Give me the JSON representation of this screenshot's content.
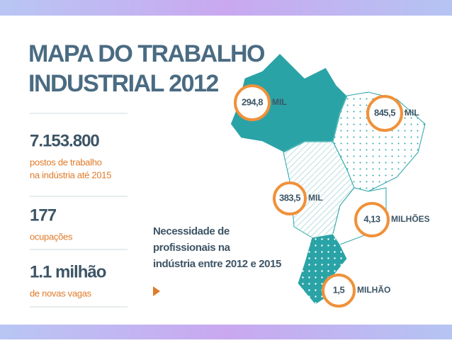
{
  "header": {
    "title": [
      "MAPA DO TRABALHO",
      "INDUSTRIAL 2012"
    ]
  },
  "stats": [
    {
      "value": "7.153.800",
      "label": [
        "postos de trabalho",
        "na indústria até 2015"
      ]
    },
    {
      "value": "177",
      "label": [
        "ocupações"
      ]
    },
    {
      "value": "1.1 milhão",
      "label": [
        "de novas vagas"
      ]
    }
  ],
  "note": [
    "Necessidade de",
    "profissionais na",
    "indústria entre 2012 e 2015"
  ],
  "regions": [
    {
      "value": "294,8",
      "unit": "MIL"
    },
    {
      "value": "845,5",
      "unit": "MIL"
    },
    {
      "value": "383,5",
      "unit": "MIL"
    },
    {
      "value": "4,13",
      "unit": "MILHÕES"
    },
    {
      "value": "1,5",
      "unit": "MILHÃO"
    }
  ]
}
